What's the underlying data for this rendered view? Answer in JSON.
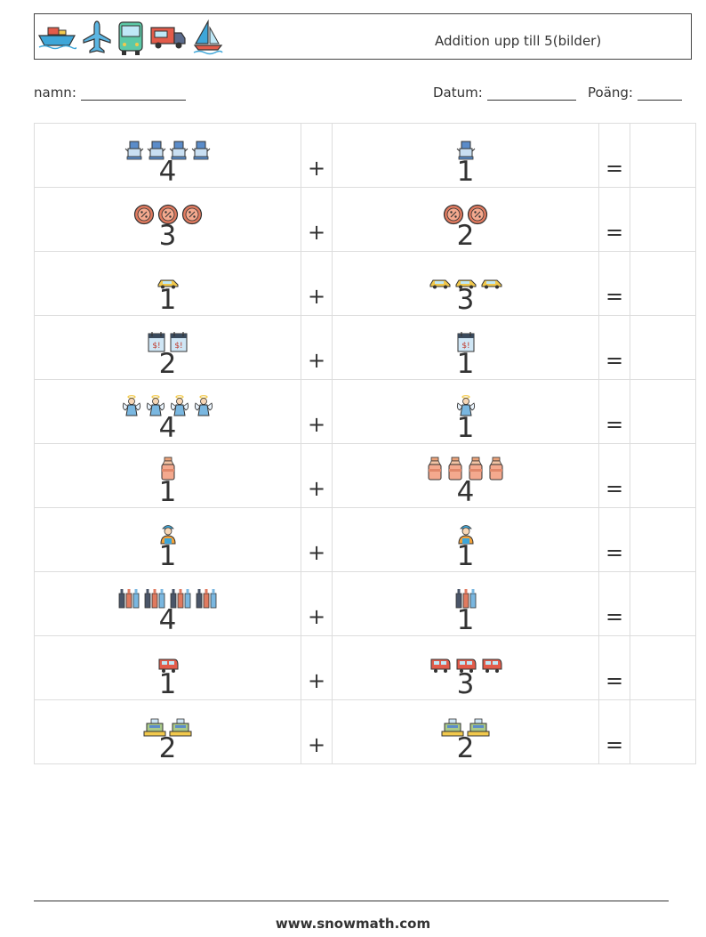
{
  "header": {
    "title": "Addition upp till 5(bilder)",
    "icons": [
      "ship-icon",
      "airplane-icon",
      "bus-icon",
      "food-truck-icon",
      "sailboat-icon"
    ]
  },
  "meta": {
    "name_label": "namn:",
    "date_label": "Datum:",
    "score_label": "Poäng:"
  },
  "operators": {
    "plus": "+",
    "equals": "="
  },
  "rows": [
    {
      "left": {
        "value": "4",
        "icon": "robot-icon",
        "count": 4
      },
      "right": {
        "value": "1",
        "icon": "robot-icon",
        "count": 1
      }
    },
    {
      "left": {
        "value": "3",
        "icon": "sale-badge-icon",
        "count": 3
      },
      "right": {
        "value": "2",
        "icon": "sale-badge-icon",
        "count": 2
      }
    },
    {
      "left": {
        "value": "1",
        "icon": "taxi-icon",
        "count": 1
      },
      "right": {
        "value": "3",
        "icon": "taxi-icon",
        "count": 3
      }
    },
    {
      "left": {
        "value": "2",
        "icon": "calendar-icon",
        "count": 2
      },
      "right": {
        "value": "1",
        "icon": "calendar-icon",
        "count": 1
      }
    },
    {
      "left": {
        "value": "4",
        "icon": "angel-icon",
        "count": 4
      },
      "right": {
        "value": "1",
        "icon": "angel-icon",
        "count": 1
      }
    },
    {
      "left": {
        "value": "1",
        "icon": "milk-can-icon",
        "count": 1
      },
      "right": {
        "value": "4",
        "icon": "milk-can-icon",
        "count": 4
      }
    },
    {
      "left": {
        "value": "1",
        "icon": "worker-icon",
        "count": 1
      },
      "right": {
        "value": "1",
        "icon": "worker-icon",
        "count": 1
      }
    },
    {
      "left": {
        "value": "4",
        "icon": "bottles-icon",
        "count": 4
      },
      "right": {
        "value": "1",
        "icon": "bottles-icon",
        "count": 1
      }
    },
    {
      "left": {
        "value": "1",
        "icon": "tram-icon",
        "count": 1
      },
      "right": {
        "value": "3",
        "icon": "tram-icon",
        "count": 3
      }
    },
    {
      "left": {
        "value": "2",
        "icon": "cash-register-icon",
        "count": 2
      },
      "right": {
        "value": "2",
        "icon": "cash-register-icon",
        "count": 2
      }
    }
  ],
  "footer": {
    "url": "www.snowmath.com"
  }
}
